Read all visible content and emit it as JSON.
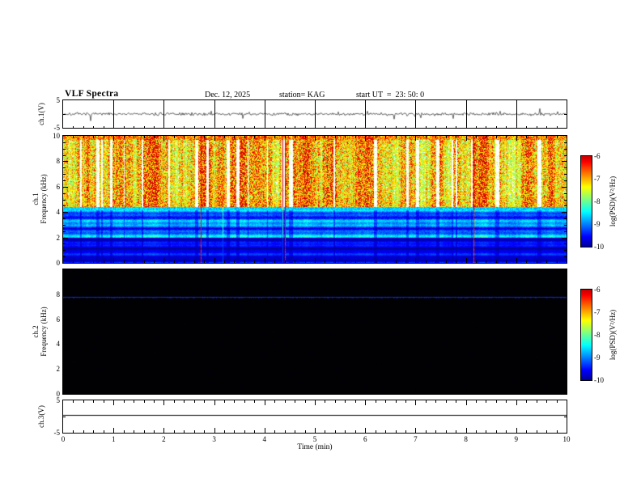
{
  "header": {
    "title": "VLF Spectra",
    "date": "Dec. 12, 2025",
    "station": "station= KAG",
    "start_ut": "start UT  =  23: 50: 0"
  },
  "x_axis": {
    "label": "Time (min)",
    "min": 0,
    "max": 10,
    "major_ticks": [
      0,
      1,
      2,
      3,
      4,
      5,
      6,
      7,
      8,
      9,
      10
    ],
    "minor_step": 0.2
  },
  "colorbar": {
    "label": "log(PSD)(V²/Hz)",
    "ticks": [
      "-6",
      "-7",
      "-8",
      "-9",
      "-10"
    ],
    "top_value": -6,
    "bottom_value": -10
  },
  "panels": {
    "ch1_wave": {
      "ylabel": "ch.1(V)",
      "ylim": [
        -5,
        5
      ],
      "ytick_values": [
        5,
        -5
      ],
      "ytick_labels": [
        "5",
        "-5"
      ]
    },
    "ch1_spec": {
      "ylabel_line1": "ch.1",
      "ylabel_line2": "Frequency (kHz)",
      "ylim": [
        0,
        10
      ],
      "ytick_values": [
        10,
        8,
        6,
        4,
        2,
        0
      ],
      "ytick_labels": [
        "10",
        "8",
        "6",
        "4",
        "2",
        "0"
      ]
    },
    "ch2_spec": {
      "ylabel_line1": "ch.2",
      "ylabel_line2": "Frequency (kHz)",
      "ylim": [
        0,
        10
      ],
      "ytick_values": [
        8,
        6,
        4,
        2,
        0
      ],
      "ytick_labels": [
        "8",
        "6",
        "4",
        "2",
        "0"
      ]
    },
    "ch3_wave": {
      "ylabel": "ch.3(V)",
      "ylim": [
        -5,
        5
      ],
      "ytick_values": [
        5,
        -5
      ],
      "ytick_labels": [
        "5",
        "-5"
      ]
    }
  },
  "chart_data": [
    {
      "type": "line",
      "panel": "ch1_wave",
      "title": "ch.1 raw signal",
      "ylabel": "ch.1(V)",
      "xlabel": "Time (min)",
      "xlim": [
        0,
        10
      ],
      "ylim": [
        -5,
        5
      ],
      "summary": "continuous broadband noise centered on 0 V, ~±0.5 V, with sporadic impulses to ~±2.5 V across the full 10 minutes",
      "noise_amp_v": 0.5,
      "spike_amp_v": 2.0,
      "spike_prob": 0.025,
      "seed": 7
    },
    {
      "type": "heatmap",
      "panel": "ch1_spec",
      "title": "ch.1 VLF spectrogram",
      "xlim": [
        0,
        10
      ],
      "ylim": [
        0,
        10
      ],
      "zlabel": "log(PSD)(V²/Hz)",
      "zlim": [
        -10,
        -6
      ],
      "bands": [
        {
          "f": [
            0,
            2
          ],
          "z": [
            -10,
            -9.3
          ],
          "look": "dark navy background with horizontal striping"
        },
        {
          "f": [
            2,
            4.15
          ],
          "z": [
            -9.5,
            -8.2
          ],
          "look": "blue with bright cyan horizontal bands, occasional green vertical lines"
        },
        {
          "f": [
            4.15,
            4.45
          ],
          "z": [
            -8.6,
            -8.2
          ],
          "look": "continuous bright cyan-blue band"
        },
        {
          "f": [
            4.45,
            10
          ],
          "z": [
            -8,
            -6
          ],
          "look": "bursty vertical striations: red cores (≈ -6) with yellow/green fringes over white gaps; dense colored strip at top edge"
        }
      ],
      "seed": 42
    },
    {
      "type": "heatmap",
      "panel": "ch2_spec",
      "title": "ch.2 VLF spectrogram",
      "xlim": [
        0,
        10
      ],
      "ylim": [
        0,
        10
      ],
      "zlabel": "log(PSD)(V²/Hz)",
      "zlim": [
        -10,
        -6
      ],
      "bands": [
        {
          "f": [
            0,
            10
          ],
          "z": [
            -10,
            -10
          ],
          "look": "at noise floor (black)"
        },
        {
          "f": [
            7.75,
            7.85
          ],
          "z": [
            -9.2,
            -9.2
          ],
          "look": "faint continuous blue horizontal line"
        }
      ],
      "line_freq_khz": 7.8,
      "seed": 11
    },
    {
      "type": "line",
      "panel": "ch3_wave",
      "title": "ch.3 raw signal",
      "ylabel": "ch.3(V)",
      "xlim": [
        0,
        10
      ],
      "ylim": [
        -5,
        5
      ],
      "summary": "flat featureless trace at ≈ +0.5 V (no signal)",
      "baseline_v": 0.5,
      "seed": 3
    }
  ]
}
